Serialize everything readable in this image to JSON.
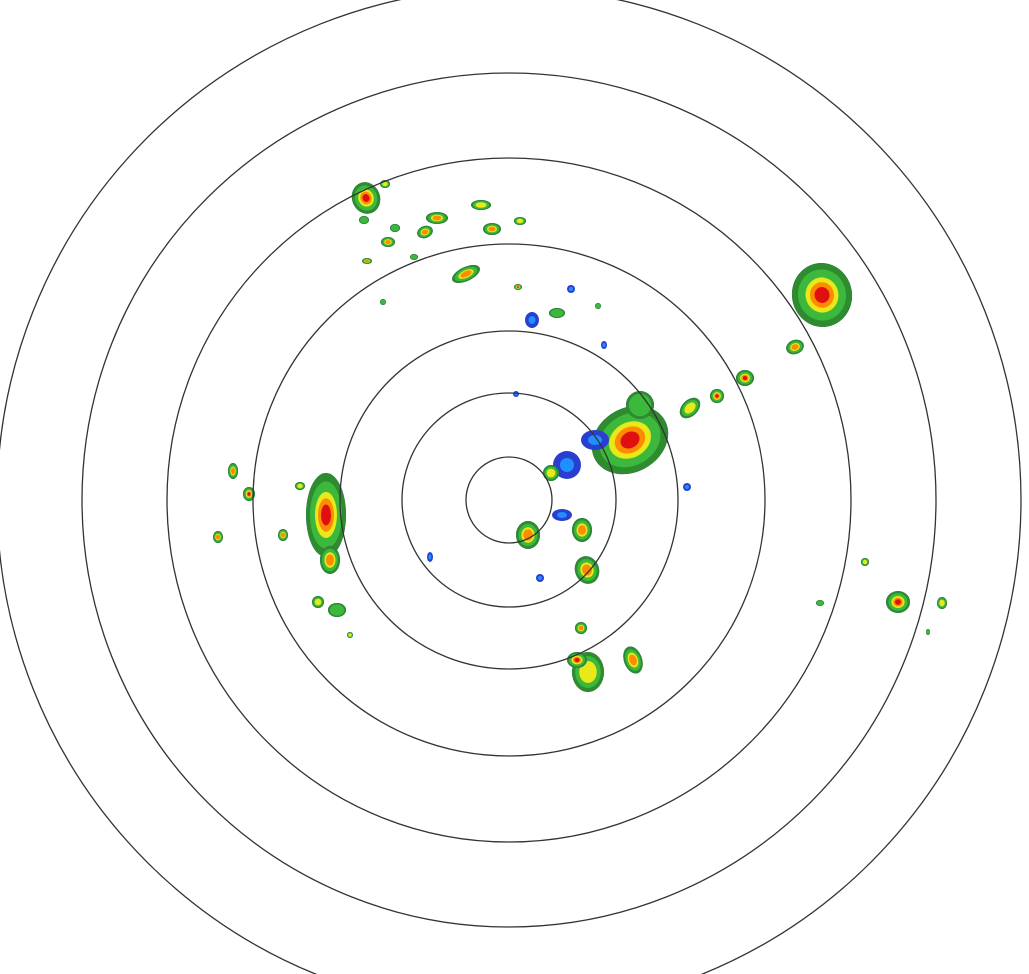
{
  "radar": {
    "range_ring_count": 7,
    "colors": {
      "background": "#ffffff",
      "ring": "#333333",
      "weak_blue": "#2a3fcf",
      "light_blue": "#1e90ff",
      "green_dark": "#2e8b2e",
      "green": "#3cb83c",
      "yellow": "#e8e81a",
      "orange": "#ff8c00",
      "red": "#e01010"
    }
  }
}
